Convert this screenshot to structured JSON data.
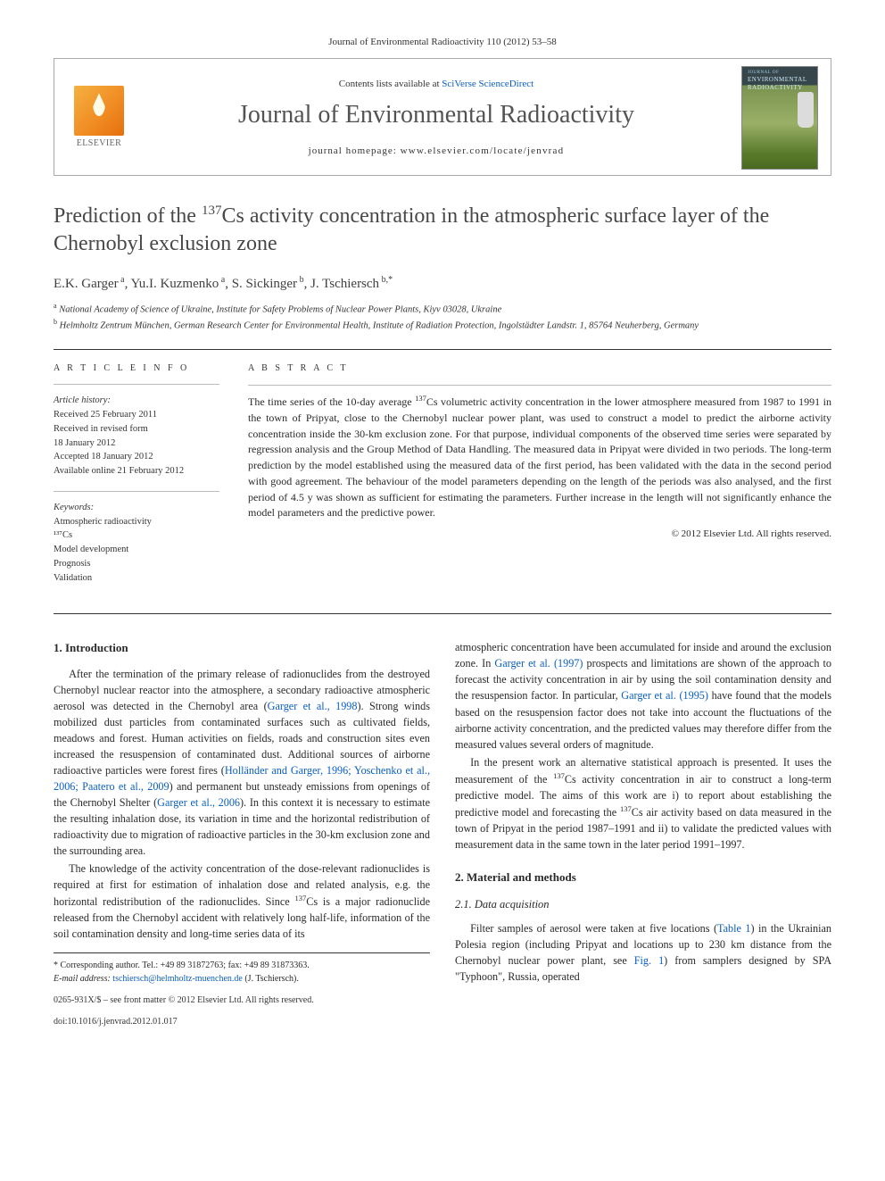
{
  "topbar": {
    "citation": "Journal of Environmental Radioactivity 110 (2012) 53–58"
  },
  "header": {
    "contents_prefix": "Contents lists available at ",
    "contents_link": "SciVerse ScienceDirect",
    "journal_title": "Journal of Environmental Radioactivity",
    "homepage_prefix": "journal homepage: ",
    "homepage_url": "www.elsevier.com/locate/jenvrad",
    "publisher_logo_label": "ELSEVIER",
    "cover_line1": "JOURNAL OF",
    "cover_line2": "ENVIRONMENTAL RADIOACTIVITY"
  },
  "article": {
    "title_pre": "Prediction of the ",
    "title_iso": "137",
    "title_post": "Cs activity concentration in the atmospheric surface layer of the Chernobyl exclusion zone",
    "authors_html": [
      {
        "name": "E.K. Garger",
        "sup": "a"
      },
      {
        "name": "Yu.I. Kuzmenko",
        "sup": "a"
      },
      {
        "name": "S. Sickinger",
        "sup": "b"
      },
      {
        "name": "J. Tschiersch",
        "sup": "b,*"
      }
    ],
    "affiliations": [
      {
        "sup": "a",
        "text": "National Academy of Science of Ukraine, Institute for Safety Problems of Nuclear Power Plants, Kiyv 03028, Ukraine"
      },
      {
        "sup": "b",
        "text": "Helmholtz Zentrum München, German Research Center for Environmental Health, Institute of Radiation Protection, Ingolstädter Landstr. 1, 85764 Neuherberg, Germany"
      }
    ]
  },
  "articleinfo": {
    "heading": "A R T I C L E  I N F O",
    "history_label": "Article history:",
    "history": [
      "Received 25 February 2011",
      "Received in revised form",
      "18 January 2012",
      "Accepted 18 January 2012",
      "Available online 21 February 2012"
    ],
    "keywords_label": "Keywords:",
    "keywords": [
      "Atmospheric radioactivity",
      "¹³⁷Cs",
      "Model development",
      "Prognosis",
      "Validation"
    ]
  },
  "abstract": {
    "heading": "A B S T R A C T",
    "body_pre": "The time series of the 10-day average ",
    "iso": "137",
    "body_post": "Cs volumetric activity concentration in the lower atmosphere measured from 1987 to 1991 in the town of Pripyat, close to the Chernobyl nuclear power plant, was used to construct a model to predict the airborne activity concentration inside the 30-km exclusion zone. For that purpose, individual components of the observed time series were separated by regression analysis and the Group Method of Data Handling. The measured data in Pripyat were divided in two periods. The long-term prediction by the model established using the measured data of the first period, has been validated with the data in the second period with good agreement. The behaviour of the model parameters depending on the length of the periods was also analysed, and the first period of 4.5 y was shown as sufficient for estimating the parameters. Further increase in the length will not significantly enhance the model parameters and the predictive power.",
    "copyright": "© 2012 Elsevier Ltd. All rights reserved."
  },
  "sections": {
    "s1": {
      "h": "1. Introduction",
      "p1a": "After the termination of the primary release of radionuclides from the destroyed Chernobyl nuclear reactor into the atmosphere, a secondary radioactive atmospheric aerosol was detected in the Chernobyl area (",
      "r1": "Garger et al., 1998",
      "p1b": "). Strong winds mobilized dust particles from contaminated surfaces such as cultivated fields, meadows and forest. Human activities on fields, roads and construction sites even increased the resuspension of contaminated dust. Additional sources of airborne radioactive particles were forest fires (",
      "r2": "Holländer and Garger, 1996; Yoschenko et al., 2006; Paatero et al., 2009",
      "p1c": ") and permanent but unsteady emissions from openings of the Chernobyl Shelter (",
      "r3": "Garger et al., 2006",
      "p1d": "). In this context it is necessary to estimate the resulting inhalation dose, its variation in time and the horizontal redistribution of radioactivity due to migration of radioactive particles in the 30-km exclusion zone and the surrounding area.",
      "p2a": "The knowledge of the activity concentration of the dose-relevant radionuclides is required at first for estimation of inhalation dose and related analysis, e.g. the horizontal redistribution of the radionuclides. Since ",
      "p2iso": "137",
      "p2b": "Cs is a major radionuclide released from the Chernobyl accident with relatively long half-life, information of the soil contamination density and long-time series data of its",
      "p3a": "atmospheric concentration have been accumulated for inside and around the exclusion zone. In ",
      "r4": "Garger et al. (1997)",
      "p3b": " prospects and limitations are shown of the approach to forecast the activity concentration in air by using the soil contamination density and the resuspension factor. In particular, ",
      "r5": "Garger et al. (1995)",
      "p3c": " have found that the models based on the resuspension factor does not take into account the fluctuations of the airborne activity concentration, and the predicted values may therefore differ from the measured values several orders of magnitude.",
      "p4a": "In the present work an alternative statistical approach is presented. It uses the measurement of the ",
      "p4iso": "137",
      "p4b": "Cs activity concentration in air to construct a long-term predictive model. The aims of this work are i) to report about establishing the predictive model and forecasting the ",
      "p4iso2": "137",
      "p4c": "Cs air activity based on data measured in the town of Pripyat in the period 1987–1991 and ii) to validate the predicted values with measurement data in the same town in the later period 1991–1997."
    },
    "s2": {
      "h": "2. Material and methods",
      "s21h": "2.1. Data acquisition",
      "p1a": "Filter samples of aerosol were taken at five locations (",
      "r1": "Table 1",
      "p1b": ") in the Ukrainian Polesia region (including Pripyat and locations up to 230 km distance from the Chernobyl nuclear power plant, see ",
      "r2": "Fig. 1",
      "p1c": ") from samplers designed by SPA \"Typhoon\", Russia, operated"
    }
  },
  "footnote": {
    "star": "* Corresponding author. Tel.: +49 89 31872763; fax: +49 89 31873363.",
    "email_label": "E-mail address:",
    "email": "tschiersch@helmholtz-muenchen.de",
    "email_tail": " (J. Tschiersch)."
  },
  "footer": {
    "issn": "0265-931X/$ – see front matter © 2012 Elsevier Ltd. All rights reserved.",
    "doi": "doi:10.1016/j.jenvrad.2012.01.017"
  },
  "colors": {
    "link": "#0b5fbf",
    "text": "#2a2a2a",
    "gray_title": "#535353",
    "rule": "#333333",
    "rule_light": "#bbbbbb"
  },
  "typography": {
    "body_pt": 12.2,
    "title_pt": 24,
    "journal_title_pt": 28,
    "authors_pt": 15,
    "meta_pt": 10.5,
    "line_height": 1.48
  }
}
